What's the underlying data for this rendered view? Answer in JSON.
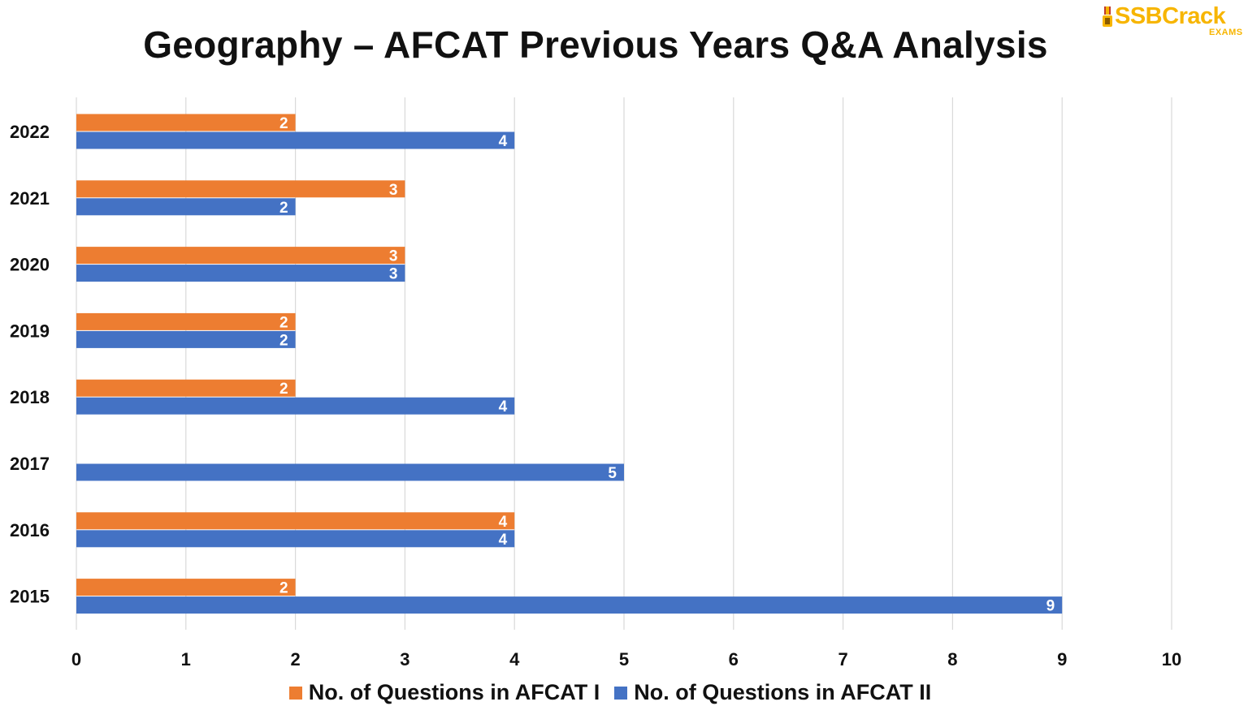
{
  "brand": {
    "name": "SSBCrack",
    "sub": "EXAMS",
    "color": "#f7b500",
    "icon": "medal-icon"
  },
  "chart_data": {
    "type": "bar",
    "orientation": "horizontal",
    "title": "Geography – AFCAT Previous Years Q&A Analysis",
    "xlabel": "",
    "ylabel": "",
    "xlim": [
      0,
      10
    ],
    "x_ticks": [
      "0",
      "1",
      "2",
      "3",
      "4",
      "5",
      "6",
      "7",
      "8",
      "9",
      "10"
    ],
    "grid": "vertical",
    "legend_position": "bottom",
    "categories": [
      "2022",
      "2021",
      "2020",
      "2019",
      "2018",
      "2017",
      "2016",
      "2015"
    ],
    "series": [
      {
        "name": "No. of Questions in AFCAT I",
        "color": "#ed7d31",
        "values": [
          2,
          3,
          3,
          2,
          2,
          null,
          4,
          2
        ]
      },
      {
        "name": "No. of Questions in AFCAT II",
        "color": "#4472c4",
        "values": [
          4,
          2,
          3,
          2,
          4,
          5,
          4,
          9
        ]
      }
    ]
  }
}
